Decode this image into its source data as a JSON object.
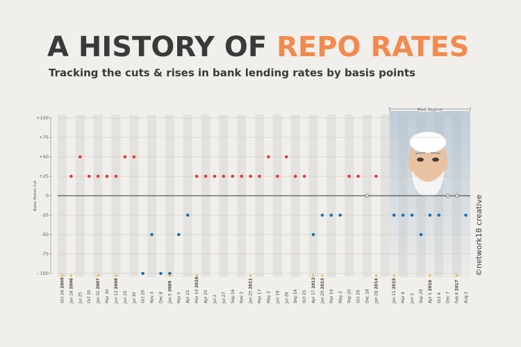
{
  "header": {
    "title_part1": "A HISTORY OF",
    "title_part2": "REPO RATES",
    "subtitle": "Tracking the cuts & rises in bank lending rates by basis points"
  },
  "credit": "©network18 creative",
  "colors": {
    "rise": "#e53935",
    "cut": "#1e6fb8",
    "neutral": "#777777",
    "accent": "#f28a4f",
    "year_marker": "#f2b53a",
    "highlight": "#9db5cc"
  },
  "chart_data": {
    "type": "scatter",
    "ylabel": "Basis Points Cut",
    "ylim": [
      -100,
      100
    ],
    "yticks": [
      100,
      75,
      50,
      25,
      0,
      -25,
      -50,
      -75,
      -100
    ],
    "ytick_labels": [
      "+100",
      "+75",
      "+50",
      "+25",
      "0",
      "-25",
      "-50",
      "-75",
      "- 100"
    ],
    "highlight_label": "Modi Regime",
    "highlight_start_index": 37,
    "points": [
      {
        "label": "Oct 26",
        "year": "2005",
        "value": null
      },
      {
        "label": "Jan 24",
        "year": "2006",
        "value": 25
      },
      {
        "label": "Jul 25",
        "year": "",
        "value": 50
      },
      {
        "label": "Oct 30",
        "year": "",
        "value": 25
      },
      {
        "label": "Jan 31",
        "year": "2007",
        "value": 25
      },
      {
        "label": "Mar 30",
        "year": "",
        "value": 25
      },
      {
        "label": "Jun 12",
        "year": "2008",
        "value": 25
      },
      {
        "label": "Jun 25",
        "year": "",
        "value": 50
      },
      {
        "label": "Jul 30",
        "year": "",
        "value": 50
      },
      {
        "label": "Oct 20",
        "year": "",
        "value": -100
      },
      {
        "label": "Nov 3",
        "year": "",
        "value": -50
      },
      {
        "label": "Dec 8",
        "year": "",
        "value": -100
      },
      {
        "label": "Jan 5",
        "year": "2009",
        "value": -100
      },
      {
        "label": "Mar 5",
        "year": "",
        "value": -50
      },
      {
        "label": "Apr 21",
        "year": "",
        "value": -25
      },
      {
        "label": "Mar 19",
        "year": "2010",
        "value": 25
      },
      {
        "label": "Apr 20",
        "year": "",
        "value": 25
      },
      {
        "label": "Jul 2",
        "year": "",
        "value": 25
      },
      {
        "label": "Jul 27",
        "year": "",
        "value": 25
      },
      {
        "label": "Sep 16",
        "year": "",
        "value": 25
      },
      {
        "label": "Nov 2",
        "year": "",
        "value": 25
      },
      {
        "label": "Jan 25",
        "year": "2011",
        "value": 25
      },
      {
        "label": "Mar 17",
        "year": "",
        "value": 25
      },
      {
        "label": "May 3",
        "year": "",
        "value": 50
      },
      {
        "label": "Jun 16",
        "year": "",
        "value": 25
      },
      {
        "label": "Jul 26",
        "year": "",
        "value": 50
      },
      {
        "label": "Sep 16",
        "year": "",
        "value": 25
      },
      {
        "label": "Oct 25",
        "year": "",
        "value": 25
      },
      {
        "label": "Apr 17",
        "year": "2012",
        "value": -50
      },
      {
        "label": "Jan 29",
        "year": "2013",
        "value": -25
      },
      {
        "label": "Mar 19",
        "year": "",
        "value": -25
      },
      {
        "label": "May 3",
        "year": "",
        "value": -25
      },
      {
        "label": "Sep 20",
        "year": "",
        "value": 25
      },
      {
        "label": "Oct 29",
        "year": "",
        "value": 25
      },
      {
        "label": "Dec 18",
        "year": "",
        "value": 0
      },
      {
        "label": "Jan 28",
        "year": "2014",
        "value": 25
      },
      {
        "label": "",
        "year": "",
        "value": null
      },
      {
        "label": "Jan 15",
        "year": "2015",
        "value": -25
      },
      {
        "label": "Mar 4",
        "year": "",
        "value": -25
      },
      {
        "label": "Jun 2",
        "year": "",
        "value": -25
      },
      {
        "label": "Sep 29",
        "year": "",
        "value": -50
      },
      {
        "label": "Apr 5",
        "year": "2016",
        "value": -25
      },
      {
        "label": "Oct 4",
        "year": "",
        "value": -25
      },
      {
        "label": "Dec 7",
        "year": "",
        "value": 0
      },
      {
        "label": "Feb 8",
        "year": "2017",
        "value": 0
      },
      {
        "label": "Aug 2",
        "year": "",
        "value": -25
      }
    ]
  }
}
